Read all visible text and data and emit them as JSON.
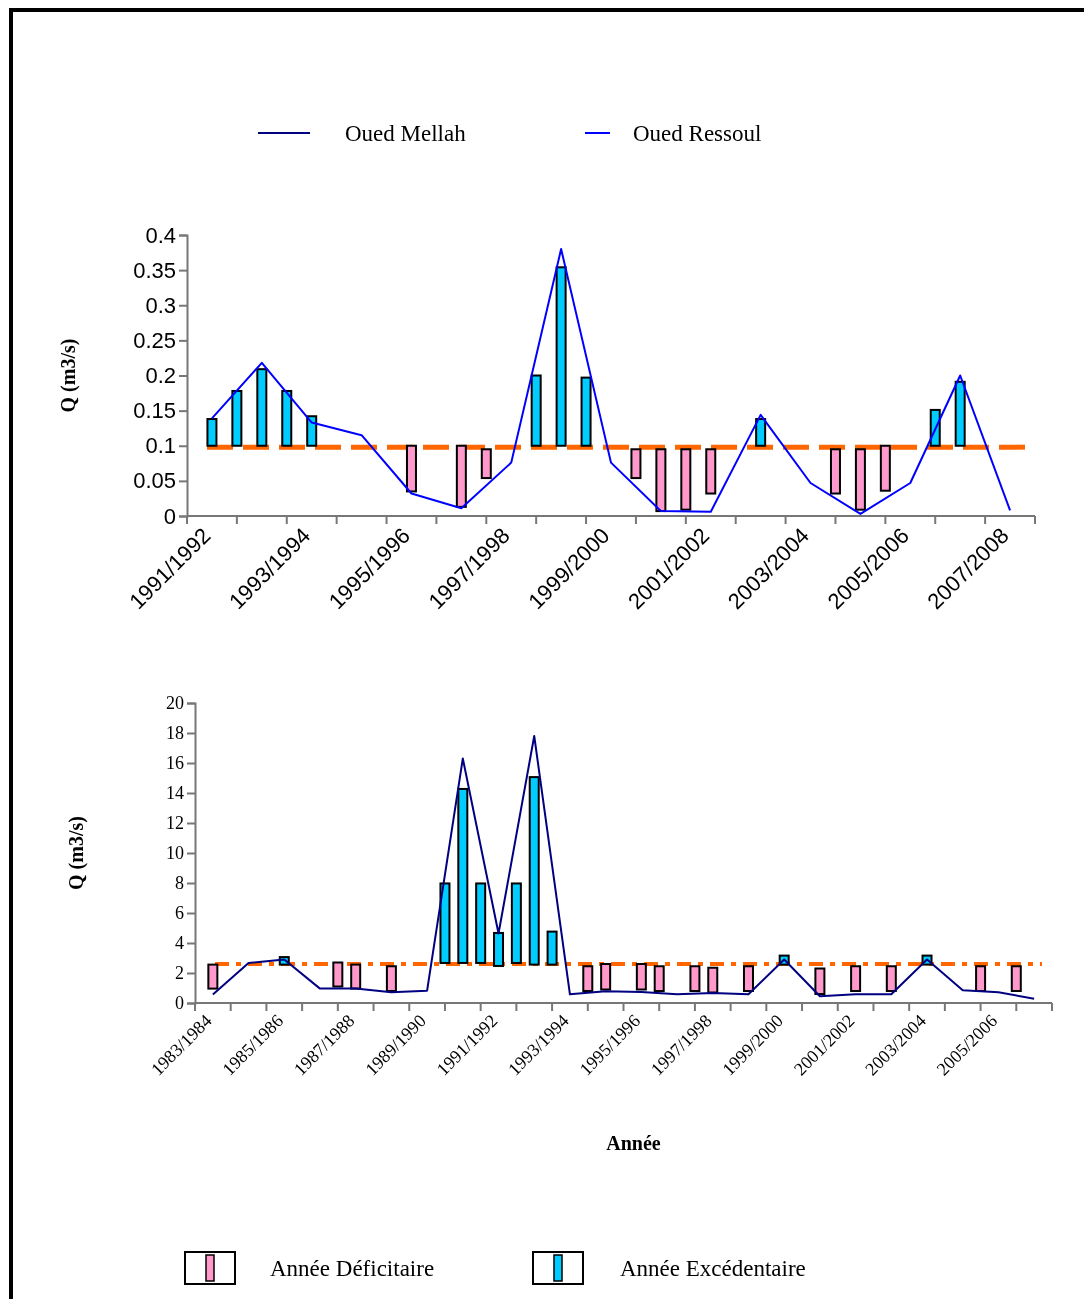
{
  "chart_data": [
    {
      "type": "line",
      "ylabel": "Q (m3/s)",
      "categories": [
        "1991/1992",
        null,
        null,
        null,
        "1993/1994",
        null,
        null,
        null,
        "1995/1996",
        null,
        null,
        null,
        "1997/1998",
        null,
        null,
        null,
        "1999/2000",
        null,
        null,
        null,
        "2001/2002",
        null,
        null,
        null,
        "2003/2004",
        null,
        null,
        null,
        "2005/2006",
        null,
        null,
        null,
        "2007/2008"
      ],
      "ylim": [
        0,
        0.4
      ],
      "yticks": [
        0,
        0.05,
        0.1,
        0.15,
        0.2,
        0.25,
        0.3,
        0.35,
        0.4
      ],
      "legend": "top",
      "ref_lines": [
        {
          "axis": "y",
          "value": 0.098,
          "color": "#ff6600",
          "line_style": "dashed"
        }
      ],
      "series": [
        {
          "type": "bar",
          "color": "#00ccff",
          "base": [
            0.1,
            0.1,
            0.1,
            0.1,
            0.1,
            null,
            null,
            null,
            null,
            null,
            null,
            null,
            null,
            0.1,
            0.1,
            0.1,
            null,
            null,
            null,
            null,
            null,
            null,
            0.1,
            null,
            null,
            null,
            null,
            null,
            null,
            0.1,
            0.1,
            null,
            null
          ],
          "values": [
            0.038,
            0.078,
            0.109,
            0.078,
            0.042,
            null,
            null,
            null,
            null,
            null,
            null,
            null,
            null,
            0.1,
            0.254,
            0.097,
            null,
            null,
            null,
            null,
            null,
            null,
            0.038,
            null,
            null,
            null,
            null,
            null,
            null,
            0.051,
            0.091,
            null,
            null
          ]
        },
        {
          "type": "bar",
          "color": "#ff99cc",
          "base": [
            null,
            null,
            null,
            null,
            null,
            null,
            null,
            null,
            0.035,
            null,
            0.013,
            0.054,
            null,
            null,
            null,
            null,
            null,
            0.054,
            0.007,
            0.009,
            0.032,
            null,
            null,
            null,
            null,
            0.032,
            0.009,
            0.036,
            null,
            null,
            null,
            null,
            null
          ],
          "values": [
            null,
            null,
            null,
            null,
            null,
            null,
            null,
            null,
            0.065,
            null,
            0.087,
            0.041,
            null,
            null,
            null,
            null,
            null,
            0.041,
            0.088,
            0.086,
            0.063,
            null,
            null,
            null,
            null,
            0.063,
            0.086,
            0.064,
            null,
            null,
            null,
            null,
            null
          ]
        },
        {
          "name": "Oued Ressoul",
          "color": "#0000ff",
          "values": [
            0.139,
            null,
            0.218,
            null,
            0.133,
            null,
            0.115,
            null,
            0.032,
            null,
            0.011,
            null,
            0.076,
            null,
            0.38,
            null,
            0.076,
            null,
            0.007,
            null,
            0.006,
            null,
            0.144,
            null,
            0.047,
            null,
            0.003,
            null,
            0.047,
            null,
            0.2,
            null,
            0.008
          ]
        }
      ]
    },
    {
      "type": "line",
      "xlabel": "Année",
      "ylabel": "Q (m3/s)",
      "categories": [
        "1983/1984",
        null,
        null,
        null,
        "1985/1986",
        null,
        null,
        null,
        "1987/1988",
        null,
        null,
        null,
        "1989/1990",
        null,
        null,
        null,
        "1991/1992",
        null,
        null,
        null,
        "1993/1994",
        null,
        null,
        null,
        "1995/1996",
        null,
        null,
        null,
        "1997/1998",
        null,
        null,
        null,
        "1999/2000",
        null,
        null,
        null,
        "2001/2002",
        null,
        null,
        null,
        "2003/2004",
        null,
        null,
        null,
        "2005/2006",
        null,
        null
      ],
      "ylim": [
        0,
        20
      ],
      "yticks": [
        0,
        2,
        4,
        6,
        8,
        10,
        12,
        14,
        16,
        18,
        20
      ],
      "legend": "top left",
      "ref_lines": [
        {
          "axis": "y",
          "value": 2.6,
          "color": "#ff6600",
          "line_style": "dashed"
        }
      ],
      "series": [
        {
          "type": "bar",
          "name": "Année Déficitaire",
          "color": "#ff99cc",
          "base": [
            0.96,
            null,
            null,
            null,
            null,
            null,
            null,
            1.1,
            0.96,
            null,
            0.8,
            null,
            null,
            null,
            null,
            null,
            null,
            null,
            null,
            null,
            null,
            0.8,
            0.9,
            null,
            0.9,
            0.8,
            null,
            0.8,
            0.7,
            null,
            0.8,
            null,
            null,
            null,
            0.6,
            null,
            0.8,
            null,
            0.8,
            null,
            null,
            null,
            null,
            0.8,
            null,
            0.8,
            null
          ],
          "values": [
            1.6,
            null,
            null,
            null,
            null,
            null,
            null,
            1.6,
            1.6,
            null,
            1.65,
            null,
            null,
            null,
            null,
            null,
            null,
            null,
            null,
            null,
            null,
            1.65,
            1.7,
            null,
            1.7,
            1.65,
            null,
            1.65,
            1.65,
            null,
            1.65,
            null,
            null,
            null,
            1.7,
            null,
            1.65,
            null,
            1.65,
            null,
            null,
            null,
            null,
            1.65,
            null,
            1.65,
            null
          ]
        },
        {
          "type": "bar",
          "name": "Année Excédentaire",
          "color": "#00ccff",
          "base": [
            null,
            null,
            null,
            null,
            2.56,
            null,
            null,
            null,
            null,
            null,
            null,
            null,
            null,
            2.67,
            2.67,
            2.67,
            2.47,
            2.67,
            2.56,
            2.56,
            null,
            null,
            null,
            null,
            null,
            null,
            null,
            null,
            null,
            null,
            null,
            null,
            2.56,
            null,
            null,
            null,
            null,
            null,
            null,
            null,
            2.56,
            null,
            null,
            null,
            null,
            null,
            null
          ],
          "values": [
            null,
            null,
            null,
            null,
            0.5,
            null,
            null,
            null,
            null,
            null,
            null,
            null,
            null,
            5.3,
            11.6,
            5.3,
            2.2,
            5.3,
            12.5,
            2.2,
            null,
            null,
            null,
            null,
            null,
            null,
            null,
            null,
            null,
            null,
            null,
            null,
            0.6,
            null,
            null,
            null,
            null,
            null,
            null,
            null,
            0.6,
            null,
            null,
            null,
            null,
            null,
            null
          ]
        },
        {
          "name": "Oued Mellah",
          "color": "#000080",
          "values": [
            0.56,
            null,
            2.67,
            null,
            2.9,
            null,
            0.96,
            null,
            0.96,
            null,
            0.71,
            null,
            0.82,
            null,
            16.3,
            null,
            4.63,
            null,
            17.8,
            null,
            0.58,
            null,
            0.78,
            null,
            0.73,
            null,
            0.58,
            null,
            0.67,
            null,
            0.58,
            null,
            2.9,
            null,
            0.45,
            null,
            0.58,
            null,
            0.58,
            null,
            2.9,
            null,
            0.85,
            null,
            0.71,
            null,
            0.29
          ]
        }
      ]
    }
  ]
}
